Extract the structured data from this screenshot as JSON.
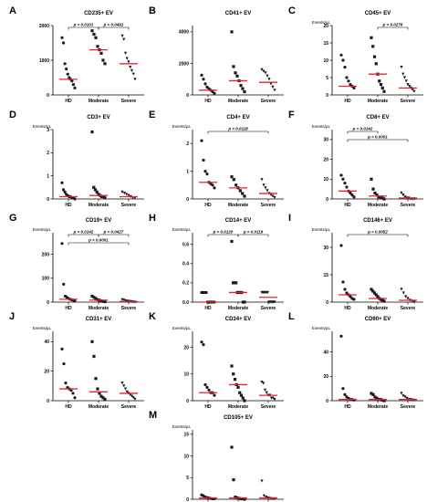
{
  "figure": {
    "ylabel_text": "Events/μL",
    "categories": [
      "HD",
      "Moderate",
      "Severe"
    ],
    "colors": {
      "median": "#e8232b",
      "points": "#1a1a1a",
      "axis": "#000000"
    }
  },
  "chart_data": [
    {
      "letter": "A",
      "type": "scatter",
      "title": "CD235+ EV",
      "ylabel": "",
      "ylim": [
        0,
        2000
      ],
      "yticks": [
        "0",
        "1000",
        "2000"
      ],
      "categories": [
        "HD",
        "Moderate",
        "Severe"
      ],
      "series": [
        {
          "values": [
            1650,
            1500,
            900,
            750,
            600,
            500,
            450,
            400,
            300,
            200
          ],
          "median": 450
        },
        {
          "values": [
            1850,
            1750,
            1650,
            1400,
            1300,
            1200,
            1000,
            900
          ],
          "median": 1300
        },
        {
          "values": [
            1700,
            1600,
            1200,
            1050,
            950,
            800,
            700,
            600,
            450
          ],
          "median": 900
        }
      ],
      "comparisons": [
        {
          "from": 0,
          "to": 1,
          "level": 0,
          "label": "p = 0.0101"
        },
        {
          "from": 1,
          "to": 2,
          "level": 0,
          "label": "p = 0.0491"
        }
      ]
    },
    {
      "letter": "B",
      "type": "scatter",
      "title": "CD41+ EV",
      "ylabel": "",
      "ylim": [
        0,
        4400
      ],
      "yticks": [
        "0",
        "2000",
        "4000"
      ],
      "categories": [
        "HD",
        "Moderate",
        "Severe"
      ],
      "series": [
        {
          "values": [
            1250,
            1000,
            700,
            500,
            400,
            300,
            200,
            100
          ],
          "median": 300
        },
        {
          "values": [
            4000,
            1800,
            1400,
            1200,
            900,
            600,
            400,
            200
          ],
          "median": 900
        },
        {
          "values": [
            1600,
            1500,
            1400,
            1200,
            1000,
            700,
            500,
            300
          ],
          "median": 800
        }
      ],
      "comparisons": []
    },
    {
      "letter": "C",
      "type": "scatter",
      "title": "CD45+ EV",
      "ylabel": "Events/μL",
      "ylim": [
        0,
        20
      ],
      "yticks": [
        "0",
        "5",
        "10",
        "15",
        "20"
      ],
      "categories": [
        "HD",
        "Moderate",
        "Severe"
      ],
      "series": [
        {
          "values": [
            11.5,
            10,
            8,
            5,
            4,
            3,
            2.5,
            2
          ],
          "median": 2.5
        },
        {
          "values": [
            16.5,
            14,
            11,
            9,
            6,
            4,
            3,
            2,
            1
          ],
          "median": 6
        },
        {
          "values": [
            8,
            6,
            5,
            4,
            3,
            2.5,
            2,
            1.5,
            1
          ],
          "median": 2
        }
      ],
      "comparisons": [
        {
          "from": 1,
          "to": 2,
          "level": 0,
          "label": "p = 0.0276"
        }
      ]
    },
    {
      "letter": "D",
      "type": "scatter",
      "title": "CD3+ EV",
      "ylabel": "Events/μL",
      "ylim": [
        0,
        3
      ],
      "yticks": [
        "0",
        "1",
        "2",
        "3"
      ],
      "categories": [
        "HD",
        "Moderate",
        "Severe"
      ],
      "series": [
        {
          "values": [
            0.7,
            0.4,
            0.3,
            0.2,
            0.15,
            0.1,
            0.1,
            0.05,
            0.05,
            0
          ],
          "median": 0.1
        },
        {
          "values": [
            2.9,
            0.5,
            0.4,
            0.3,
            0.2,
            0.15,
            0.1,
            0.1,
            0.05
          ],
          "median": 0.15
        },
        {
          "values": [
            0.3,
            0.25,
            0.2,
            0.15,
            0.1,
            0.05,
            0.05
          ],
          "median": 0.1
        }
      ],
      "comparisons": []
    },
    {
      "letter": "E",
      "type": "scatter",
      "title": "CD4+ EV",
      "ylabel": "Events/μL",
      "ylim": [
        0,
        2.5
      ],
      "yticks": [
        "0",
        "1",
        "2"
      ],
      "categories": [
        "HD",
        "Moderate",
        "Severe"
      ],
      "series": [
        {
          "values": [
            2.1,
            1.4,
            1.0,
            0.9,
            0.6,
            0.55,
            0.5,
            0.4
          ],
          "median": 0.6
        },
        {
          "values": [
            0.8,
            0.7,
            0.5,
            0.4,
            0.3,
            0.2,
            0.1
          ],
          "median": 0.4
        },
        {
          "values": [
            0.7,
            0.5,
            0.4,
            0.3,
            0.2,
            0.15,
            0.1,
            0.05
          ],
          "median": 0.2
        }
      ],
      "comparisons": [
        {
          "from": 0,
          "to": 2,
          "level": 0,
          "label": "p = 0.0118"
        }
      ]
    },
    {
      "letter": "F",
      "type": "scatter",
      "title": "CD8+ EV",
      "ylabel": "Events/μL",
      "ylim": [
        0,
        35
      ],
      "yticks": [
        "0",
        "10",
        "20",
        "30"
      ],
      "categories": [
        "HD",
        "Moderate",
        "Severe"
      ],
      "series": [
        {
          "values": [
            12,
            10,
            8,
            6,
            4,
            3,
            2,
            1
          ],
          "median": 4
        },
        {
          "values": [
            10,
            5,
            3,
            2,
            1,
            0.5,
            0.5,
            0
          ],
          "median": 1.5
        },
        {
          "values": [
            3,
            2,
            1,
            0.5,
            0.5,
            0,
            0,
            0
          ],
          "median": 0.5
        }
      ],
      "comparisons": [
        {
          "from": 0,
          "to": 1,
          "level": 0,
          "label": "p = 0.0142"
        },
        {
          "from": 0,
          "to": 2,
          "level": 1,
          "label": "p < 0.0001"
        }
      ]
    },
    {
      "letter": "G",
      "type": "scatter",
      "title": "CD19+ EV",
      "ylabel": "Events/μL",
      "ylim": [
        0,
        290
      ],
      "yticks": [
        "0",
        "100",
        "200"
      ],
      "categories": [
        "HD",
        "Moderate",
        "Severe"
      ],
      "series": [
        {
          "values": [
            245,
            75,
            25,
            20,
            15,
            12,
            10,
            8,
            5
          ],
          "median": 12
        },
        {
          "values": [
            25,
            20,
            15,
            10,
            8,
            5,
            3,
            2
          ],
          "median": 8
        },
        {
          "values": [
            10,
            8,
            5,
            4,
            3,
            2,
            1,
            0
          ],
          "median": 3
        }
      ],
      "comparisons": [
        {
          "from": 0,
          "to": 1,
          "level": 0,
          "label": "p = 0.0142"
        },
        {
          "from": 1,
          "to": 2,
          "level": 0,
          "label": "p = 0.0427"
        },
        {
          "from": 0,
          "to": 2,
          "level": 1,
          "label": "p < 0.0001"
        }
      ]
    },
    {
      "letter": "H",
      "type": "scatter",
      "title": "CD14+ EV",
      "ylabel": "Events/μL",
      "ylim": [
        0,
        0.72
      ],
      "yticks": [
        "0.0",
        "0.2",
        "0.4",
        "0.6"
      ],
      "categories": [
        "HD",
        "Moderate",
        "Severe"
      ],
      "series": [
        {
          "values": [
            0.1,
            0.1,
            0.1,
            0.1,
            0.1,
            0,
            0,
            0,
            0,
            0,
            0,
            0
          ],
          "median": 0
        },
        {
          "values": [
            0.63,
            0.2,
            0.2,
            0.2,
            0.1,
            0.1,
            0.1,
            0.1,
            0,
            0
          ],
          "median": 0.1
        },
        {
          "values": [
            0.1,
            0.1,
            0.1,
            0.1,
            0.1,
            0.1,
            0,
            0,
            0,
            0,
            0,
            0
          ],
          "median": 0.05
        }
      ],
      "comparisons": [
        {
          "from": 0,
          "to": 1,
          "level": 0,
          "label": "p = 0.0120"
        },
        {
          "from": 1,
          "to": 2,
          "level": 0,
          "label": "p = 0.0119"
        }
      ]
    },
    {
      "letter": "I",
      "type": "scatter",
      "title": "CD146+ EV",
      "ylabel": "Events/μL",
      "ylim": [
        0,
        38
      ],
      "yticks": [
        "0",
        "15",
        "30"
      ],
      "categories": [
        "HD",
        "Moderate",
        "Severe"
      ],
      "series": [
        {
          "values": [
            31,
            11,
            7,
            5,
            4,
            3,
            2,
            1.5
          ],
          "median": 4
        },
        {
          "values": [
            7,
            6,
            5,
            4,
            3,
            2,
            1.5,
            1,
            0.5
          ],
          "median": 2
        },
        {
          "values": [
            7,
            5,
            3,
            2,
            1,
            0.5,
            0
          ],
          "median": 1
        }
      ],
      "comparisons": [
        {
          "from": 0,
          "to": 2,
          "level": 0,
          "label": "p = 0.0052"
        }
      ]
    },
    {
      "letter": "J",
      "type": "scatter",
      "title": "CD31+ EV",
      "ylabel": "Events/μL",
      "ylim": [
        0,
        47
      ],
      "yticks": [
        "0",
        "20",
        "40"
      ],
      "categories": [
        "HD",
        "Moderate",
        "Severe"
      ],
      "series": [
        {
          "values": [
            35,
            25,
            12,
            9,
            8,
            7,
            5,
            2
          ],
          "median": 8
        },
        {
          "values": [
            40,
            30,
            15,
            8,
            5,
            3,
            2,
            1
          ],
          "median": 6
        },
        {
          "values": [
            12,
            10,
            8,
            6,
            5,
            4,
            3,
            2,
            1
          ],
          "median": 5
        }
      ],
      "comparisons": []
    },
    {
      "letter": "K",
      "type": "scatter",
      "title": "CD34+ EV",
      "ylabel": "Events/μL",
      "ylim": [
        0,
        26
      ],
      "yticks": [
        "0",
        "10",
        "20"
      ],
      "categories": [
        "HD",
        "Moderate",
        "Severe"
      ],
      "series": [
        {
          "values": [
            22,
            21,
            6,
            5,
            4,
            3,
            3,
            2
          ],
          "median": 3
        },
        {
          "values": [
            13,
            10,
            8,
            6,
            5,
            3,
            2,
            1,
            0
          ],
          "median": 6
        },
        {
          "values": [
            7,
            6.5,
            4,
            3,
            2,
            2,
            1,
            1,
            0.5
          ],
          "median": 2
        }
      ],
      "comparisons": []
    },
    {
      "letter": "L",
      "type": "scatter",
      "title": "CD90+ EV",
      "ylabel": "Events/μL",
      "ylim": [
        0,
        57
      ],
      "yticks": [
        "0",
        "20",
        "40"
      ],
      "categories": [
        "HD",
        "Moderate",
        "Severe"
      ],
      "series": [
        {
          "values": [
            53,
            10,
            5,
            3,
            2,
            1,
            1,
            0.5
          ],
          "median": 1
        },
        {
          "values": [
            6,
            5,
            3,
            2,
            1,
            1,
            0.5,
            0
          ],
          "median": 1
        },
        {
          "values": [
            6,
            4,
            3,
            2,
            1,
            1,
            0.5,
            0.5
          ],
          "median": 1
        }
      ],
      "comparisons": []
    },
    {
      "letter": "M",
      "type": "scatter",
      "title": "CD105+ EV",
      "ylabel": "Events/μL",
      "ylim": [
        0,
        16
      ],
      "yticks": [
        "0",
        "5",
        "10",
        "15"
      ],
      "categories": [
        "HD",
        "Moderate",
        "Severe"
      ],
      "series": [
        {
          "values": [
            1,
            0.8,
            0.5,
            0.4,
            0.3,
            0.2,
            0.1,
            0.1
          ],
          "median": 0.3
        },
        {
          "values": [
            12,
            4.5,
            0.5,
            0.3,
            0.2,
            0.1,
            0.1,
            0
          ],
          "median": 0.3
        },
        {
          "values": [
            4.2,
            0.8,
            0.5,
            0.3,
            0.2,
            0.1,
            0.1
          ],
          "median": 0.3
        }
      ],
      "comparisons": []
    }
  ]
}
